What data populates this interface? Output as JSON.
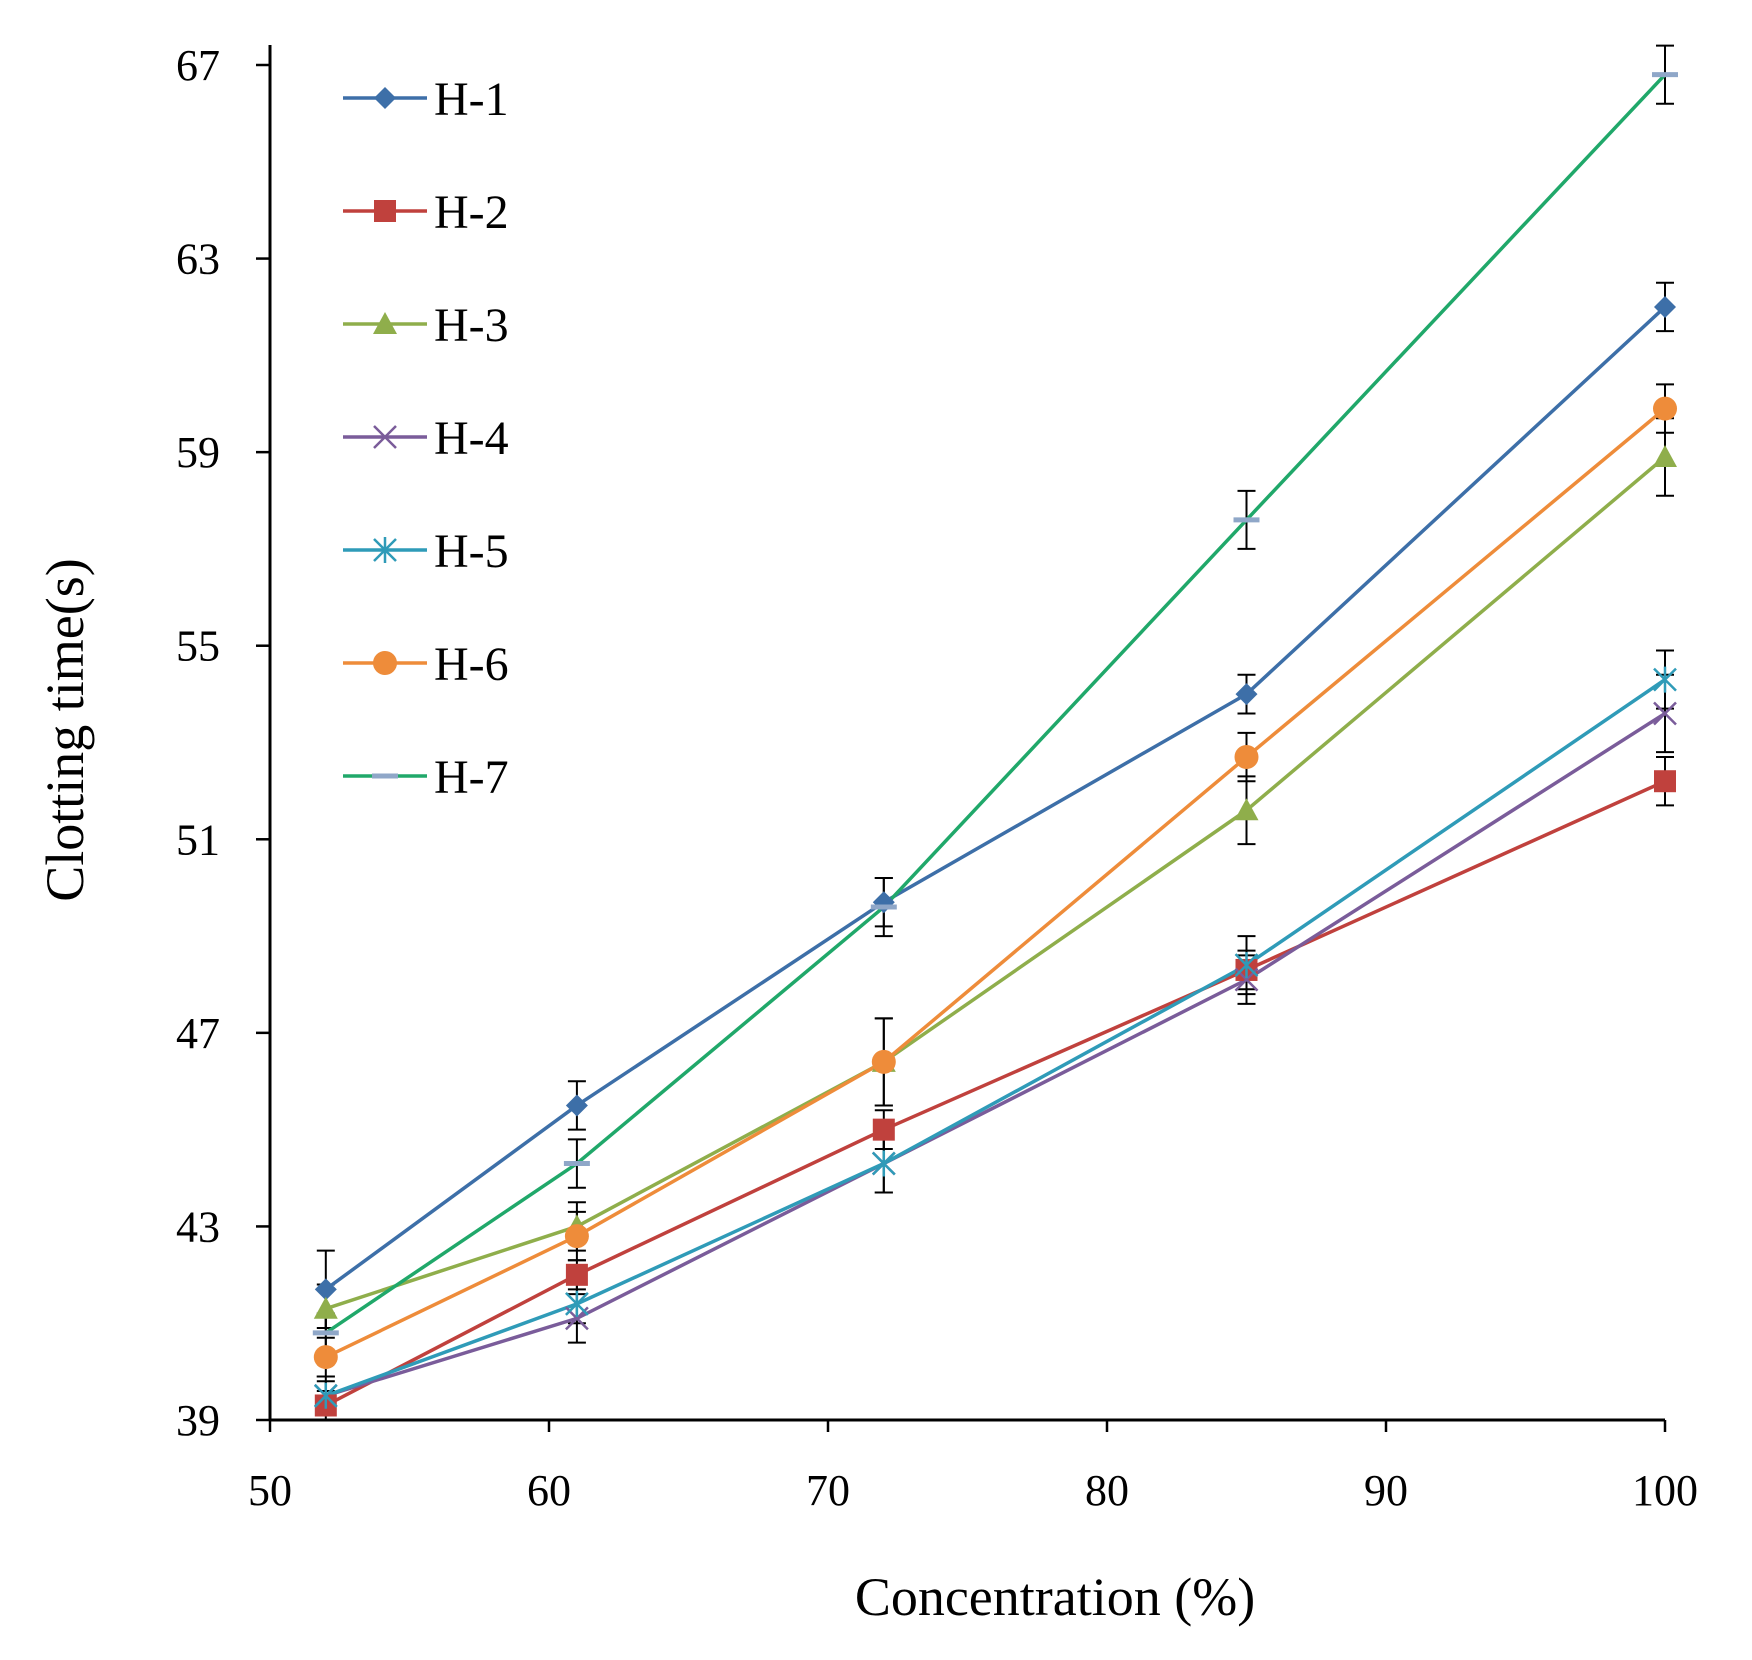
{
  "chart_data": {
    "type": "line",
    "title": "",
    "xlabel": "Concentration (%)",
    "ylabel": "Clotting time(s)",
    "xlim": [
      50,
      100
    ],
    "ylim": [
      39,
      67
    ],
    "xticks": [
      50,
      60,
      70,
      80,
      90,
      100
    ],
    "yticks": [
      39,
      43,
      47,
      51,
      55,
      59,
      63,
      67
    ],
    "grid": false,
    "legend_position": "top-left",
    "x": [
      52,
      61,
      72,
      85,
      100
    ],
    "series": [
      {
        "name": "H-1",
        "color": "#3D6FA8",
        "marker": "diamond",
        "values": [
          41.7,
          45.5,
          49.7,
          54.0,
          62.0
        ],
        "errors": [
          0.8,
          0.5,
          0.5,
          0.4,
          0.5
        ]
      },
      {
        "name": "H-2",
        "color": "#C0413D",
        "marker": "square",
        "values": [
          39.3,
          42.0,
          45.0,
          48.3,
          52.2
        ],
        "errors": [
          0.3,
          0.3,
          0.4,
          0.4,
          0.5
        ]
      },
      {
        "name": "H-3",
        "color": "#8FAE4B",
        "marker": "triangle",
        "values": [
          41.3,
          43.0,
          46.4,
          51.6,
          58.9
        ],
        "errors": [
          0.5,
          0.5,
          0.9,
          0.7,
          0.8
        ]
      },
      {
        "name": "H-4",
        "color": "#7A5C9A",
        "marker": "x",
        "values": [
          39.5,
          41.1,
          44.3,
          48.1,
          53.6
        ],
        "errors": [
          0.4,
          0.5,
          0.6,
          0.5,
          0.8
        ]
      },
      {
        "name": "H-5",
        "color": "#2F9BB8",
        "marker": "asterisk",
        "values": [
          39.5,
          41.4,
          44.3,
          48.4,
          54.3
        ],
        "errors": [
          0.3,
          0.4,
          0.6,
          0.6,
          0.6
        ]
      },
      {
        "name": "H-6",
        "color": "#EE8C3A",
        "marker": "circle",
        "values": [
          40.3,
          42.8,
          46.4,
          52.7,
          59.9
        ],
        "errors": [
          0.4,
          0.5,
          0.9,
          0.5,
          0.5
        ]
      },
      {
        "name": "H-7",
        "color": "#20A86A",
        "marker": "dash",
        "values": [
          40.8,
          44.3,
          49.6,
          57.6,
          66.8
        ],
        "errors": [
          0.4,
          0.5,
          0.6,
          0.6,
          0.6
        ]
      }
    ],
    "marker_colors": {
      "H-7": "#8FA7C8"
    }
  }
}
